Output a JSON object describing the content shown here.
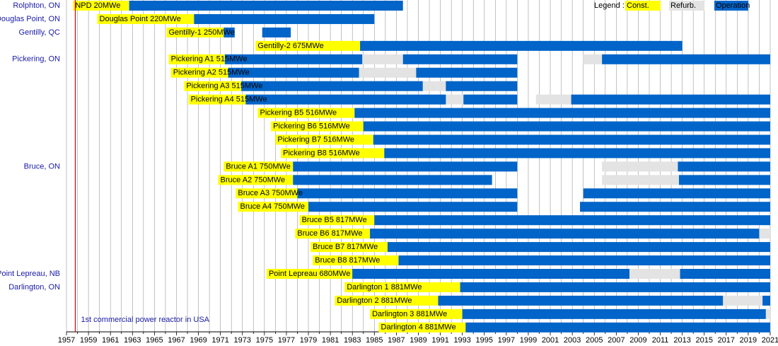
{
  "chart_data": {
    "type": "gantt",
    "xlim": [
      1957,
      2021
    ],
    "xticks": [
      1957,
      1959,
      1961,
      1963,
      1965,
      1967,
      1969,
      1971,
      1973,
      1975,
      1977,
      1979,
      1981,
      1983,
      1985,
      1987,
      1989,
      1991,
      1993,
      1995,
      1997,
      1999,
      2001,
      2003,
      2005,
      2007,
      2009,
      2011,
      2013,
      2015,
      2017,
      2019,
      2021
    ],
    "minor_xticks": [
      1958,
      1960,
      1962,
      1964,
      1966,
      1968,
      1970,
      1972,
      1974,
      1976,
      1978,
      1980,
      1982,
      1984,
      1986,
      1988,
      1990,
      1992,
      1994,
      1996,
      1998,
      2000,
      2002,
      2004,
      2006,
      2008,
      2010,
      2012,
      2014,
      2016,
      2018,
      2020
    ],
    "grid": true,
    "legend_title": "Legend :",
    "series": [
      {
        "name": "Const.",
        "color": "#ffff00"
      },
      {
        "name": "Refurb.",
        "color": "#e3e3e3"
      },
      {
        "name": "Operation",
        "color": "#0064c8"
      }
    ],
    "annotation": {
      "text": "1st commercial power reactor in USA",
      "x": 1957.8,
      "color": "#e00000"
    },
    "rows": [
      {
        "site": "Rolphton, ON",
        "label": "NPD 20MWe",
        "spans": [
          [
            [
              1957.6,
              1962.7
            ]
          ],
          [],
          [
            [
              1962.7,
              1987.6
            ]
          ]
        ]
      },
      {
        "site": "Douglas Point, ON",
        "label": "Douglas Point 220MWe",
        "spans": [
          [
            [
              1959.8,
              1968.6
            ]
          ],
          [],
          [
            [
              1968.6,
              1985.0
            ]
          ]
        ]
      },
      {
        "site": "Gentilly, QC",
        "label": "Gentilly-1 250MWe",
        "spans": [
          [
            [
              1966.1,
              1971.3
            ]
          ],
          [],
          [
            [
              1971.3,
              1972.3
            ],
            [
              1974.8,
              1977.4
            ]
          ]
        ]
      },
      {
        "label": "Gentilly-2 675MWe",
        "spans": [
          [
            [
              1974.2,
              1983.7
            ]
          ],
          [],
          [
            [
              1983.7,
              2013.0
            ]
          ]
        ]
      },
      {
        "site": "Pickering, ON",
        "label": "Pickering A1 515MWe",
        "spans": [
          [
            [
              1966.3,
              1971.4
            ]
          ],
          [
            [
              1983.9,
              1987.6
            ],
            [
              2004.0,
              2005.7
            ]
          ],
          [
            [
              1971.4,
              1983.9
            ],
            [
              1987.6,
              1998.0
            ],
            [
              2005.7,
              2021
            ]
          ]
        ]
      },
      {
        "label": "Pickering A2 515MWe",
        "spans": [
          [
            [
              1966.5,
              1971.7
            ]
          ],
          [
            [
              1983.6,
              1988.8
            ]
          ],
          [
            [
              1971.7,
              1983.6
            ],
            [
              1988.8,
              1998.0
            ]
          ]
        ]
      },
      {
        "label": "Pickering A3 515MWe",
        "spans": [
          [
            [
              1967.7,
              1972.9
            ]
          ],
          [
            [
              1989.4,
              1991.5
            ]
          ],
          [
            [
              1972.9,
              1989.4
            ],
            [
              1991.5,
              1998.0
            ]
          ]
        ]
      },
      {
        "label": "Pickering A4 515MWe",
        "spans": [
          [
            [
              1968.1,
              1973.3
            ]
          ],
          [
            [
              1991.5,
              1993.1
            ],
            [
              1999.7,
              2002.9
            ]
          ],
          [
            [
              1973.3,
              1991.5
            ],
            [
              1993.1,
              1998.0
            ],
            [
              2002.9,
              2021
            ]
          ]
        ]
      },
      {
        "label": "Pickering B5 516MWe",
        "spans": [
          [
            [
              1974.4,
              1983.2
            ]
          ],
          [],
          [
            [
              1983.2,
              2021
            ]
          ]
        ]
      },
      {
        "label": "Pickering B6 516MWe",
        "spans": [
          [
            [
              1975.6,
              1984.0
            ]
          ],
          [],
          [
            [
              1984.0,
              2021
            ]
          ]
        ]
      },
      {
        "label": "Pickering B7 516MWe",
        "spans": [
          [
            [
              1976.0,
              1984.9
            ]
          ],
          [],
          [
            [
              1984.9,
              2021
            ]
          ]
        ]
      },
      {
        "label": "Pickering B8 516MWe",
        "spans": [
          [
            [
              1976.5,
              1985.9
            ]
          ],
          [],
          [
            [
              1985.9,
              2021
            ]
          ]
        ]
      },
      {
        "site": "Bruce, ON",
        "label": "Bruce A1 750MWe",
        "spans": [
          [
            [
              1971.3,
              1977.6
            ]
          ],
          [
            [
              2005.7,
              2012.6
            ]
          ],
          [
            [
              1977.6,
              1998.0
            ],
            [
              2012.6,
              2021
            ]
          ]
        ]
      },
      {
        "label": "Bruce A2 750MWe",
        "spans": [
          [
            [
              1970.8,
              1977.6
            ]
          ],
          [
            [
              2005.7,
              2012.7
            ]
          ],
          [
            [
              1977.6,
              1995.7
            ],
            [
              2012.7,
              2021
            ]
          ]
        ]
      },
      {
        "label": "Bruce A3 750MWe",
        "spans": [
          [
            [
              1972.4,
              1978.0
            ]
          ],
          [],
          [
            [
              1978.0,
              1998.0
            ],
            [
              2004.0,
              2021
            ]
          ]
        ]
      },
      {
        "label": "Bruce A4 750MWe",
        "spans": [
          [
            [
              1972.6,
              1979.0
            ]
          ],
          [],
          [
            [
              1979.0,
              1998.0
            ],
            [
              2003.7,
              2021
            ]
          ]
        ]
      },
      {
        "label": "Bruce B5 817MWe",
        "spans": [
          [
            [
              1978.2,
              1985.0
            ]
          ],
          [],
          [
            [
              1985.0,
              2021
            ]
          ]
        ]
      },
      {
        "label": "Bruce B6 817MWe",
        "spans": [
          [
            [
              1977.8,
              1984.6
            ]
          ],
          [
            [
              2020.0,
              2021
            ]
          ],
          [
            [
              1984.6,
              2020.0
            ]
          ]
        ]
      },
      {
        "label": "Bruce B7 817MWe",
        "spans": [
          [
            [
              1979.2,
              1986.2
            ]
          ],
          [],
          [
            [
              1986.2,
              2021
            ]
          ]
        ]
      },
      {
        "label": "Bruce B8 817MWe",
        "spans": [
          [
            [
              1979.4,
              1987.2
            ]
          ],
          [],
          [
            [
              1987.2,
              2021
            ]
          ]
        ]
      },
      {
        "site": "Point Lepreau, NB",
        "label": "Point Lepreau 680MWe",
        "spans": [
          [
            [
              1975.2,
              1983.0
            ]
          ],
          [
            [
              2008.2,
              2012.8
            ]
          ],
          [
            [
              1983.0,
              2008.2
            ],
            [
              2012.8,
              2021
            ]
          ]
        ]
      },
      {
        "site": "Darlington, ON",
        "label": "Darlington 1 881MWe",
        "spans": [
          [
            [
              1982.3,
              1992.8
            ]
          ],
          [],
          [
            [
              1992.8,
              2021
            ]
          ]
        ]
      },
      {
        "label": "Darlington 2 881MWe",
        "spans": [
          [
            [
              1981.4,
              1990.8
            ]
          ],
          [
            [
              2016.7,
              2020.3
            ]
          ],
          [
            [
              1990.8,
              2016.7
            ],
            [
              2020.3,
              2021
            ]
          ]
        ]
      },
      {
        "label": "Darlington 3 881MWe",
        "spans": [
          [
            [
              1984.6,
              1993.0
            ]
          ],
          [
            [
              2020.6,
              2021
            ]
          ],
          [
            [
              1993.0,
              2020.6
            ]
          ]
        ]
      },
      {
        "label": "Darlington 4 881MWe",
        "spans": [
          [
            [
              1985.4,
              1993.3
            ]
          ],
          [],
          [
            [
              1993.3,
              2021
            ]
          ]
        ]
      }
    ]
  }
}
